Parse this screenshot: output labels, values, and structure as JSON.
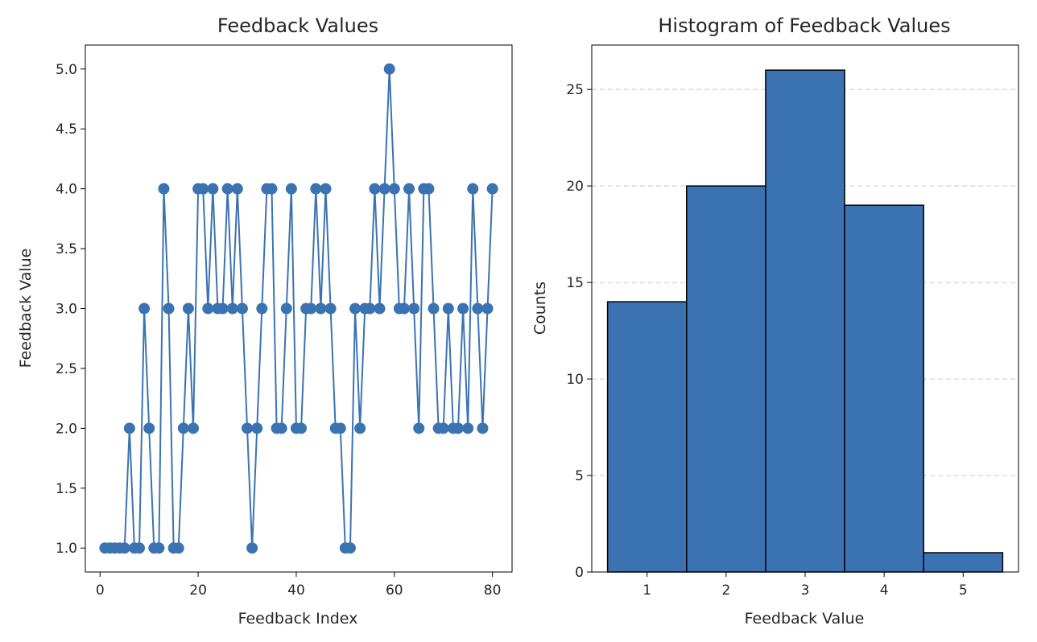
{
  "chart_data": [
    {
      "type": "line",
      "title": "Feedback Values",
      "xlabel": "Feedback Index",
      "ylabel": "Feedback Value",
      "xlim": [
        -3,
        84
      ],
      "ylim": [
        0.8,
        5.2
      ],
      "xticks": [
        0,
        20,
        40,
        60,
        80
      ],
      "xtick_labels": [
        "0",
        "20",
        "40",
        "60",
        "80"
      ],
      "yticks": [
        1.0,
        1.5,
        2.0,
        2.5,
        3.0,
        3.5,
        4.0,
        4.5,
        5.0
      ],
      "ytick_labels": [
        "1.0",
        "1.5",
        "2.0",
        "2.5",
        "3.0",
        "3.5",
        "4.0",
        "4.5",
        "5.0"
      ],
      "grid": false,
      "color": "#3b73b2",
      "series": [
        {
          "x": [
            1,
            2,
            3,
            4,
            5,
            6,
            7,
            8,
            9,
            10,
            11,
            12,
            13,
            14,
            15,
            16,
            17,
            18,
            19,
            20,
            21,
            22,
            23,
            24,
            25,
            26,
            27,
            28,
            29,
            30,
            31,
            32,
            33,
            34,
            35,
            36,
            37,
            38,
            39,
            40,
            41,
            42,
            43,
            44,
            45,
            46,
            47,
            48,
            49,
            50,
            51,
            52,
            53,
            54,
            55,
            56,
            57,
            58,
            59,
            60,
            61,
            62,
            63,
            64,
            65,
            66,
            67,
            68,
            69,
            70,
            71,
            72,
            73,
            74,
            75,
            76,
            77,
            78,
            79,
            80
          ],
          "values": [
            1,
            1,
            1,
            1,
            1,
            2,
            1,
            1,
            3,
            2,
            1,
            1,
            4,
            3,
            1,
            1,
            2,
            3,
            2,
            4,
            4,
            3,
            4,
            3,
            3,
            4,
            3,
            4,
            3,
            2,
            1,
            2,
            3,
            4,
            4,
            2,
            2,
            3,
            4,
            2,
            2,
            3,
            3,
            4,
            3,
            4,
            3,
            2,
            2,
            1,
            1,
            3,
            2,
            3,
            3,
            4,
            3,
            4,
            5,
            4,
            3,
            3,
            4,
            3,
            2,
            4,
            4,
            3,
            2,
            2,
            3,
            2,
            2,
            3,
            2,
            4,
            3,
            2,
            3,
            4
          ]
        }
      ]
    },
    {
      "type": "bar",
      "title": "Histogram of Feedback Values",
      "xlabel": "Feedback Value",
      "ylabel": "Counts",
      "categories": [
        "1",
        "2",
        "3",
        "4",
        "5"
      ],
      "values": [
        14,
        20,
        26,
        19,
        1
      ],
      "xlim": [
        0.3,
        5.7
      ],
      "ylim": [
        0,
        27.3
      ],
      "yticks": [
        0,
        5,
        10,
        15,
        20,
        25
      ],
      "ytick_labels": [
        "0",
        "5",
        "10",
        "15",
        "20",
        "25"
      ],
      "grid": "y-dashed",
      "color": "#3b73b2",
      "edge_color": "#000000"
    }
  ]
}
